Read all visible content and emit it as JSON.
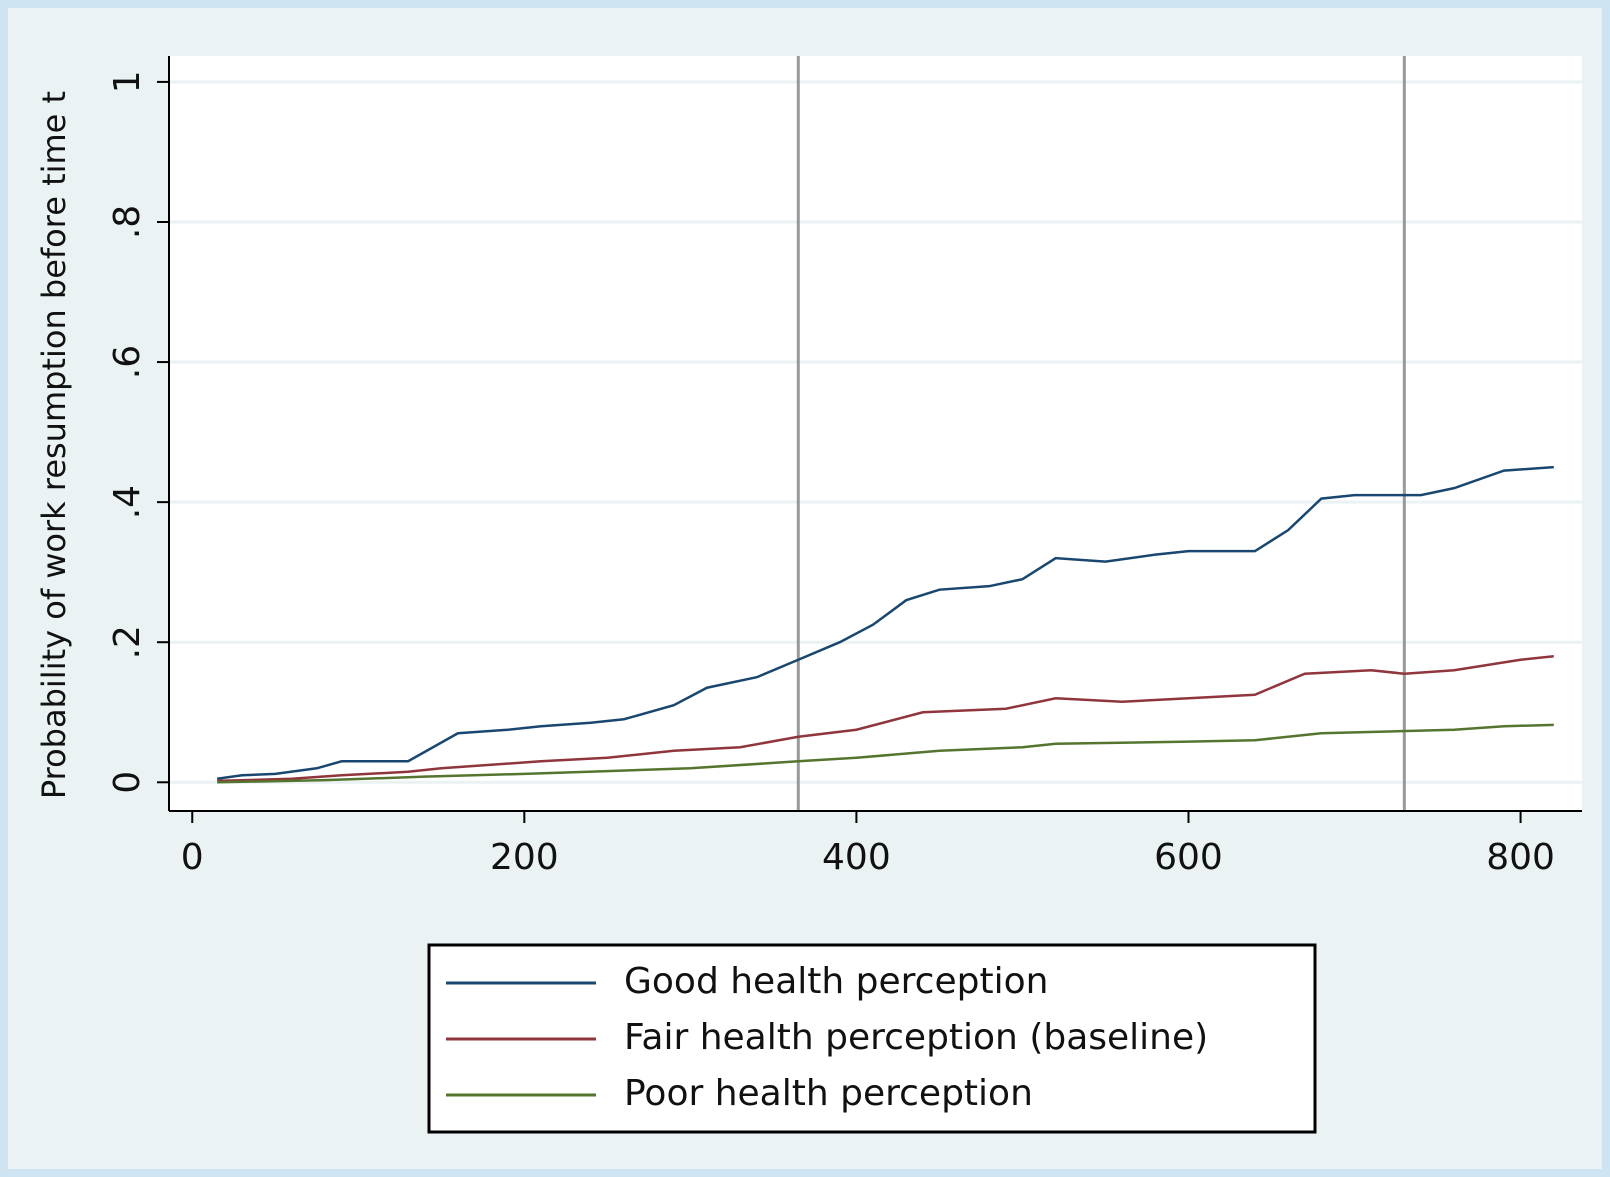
{
  "chart_data": {
    "type": "line",
    "y_label": "Probability of work resumption before time t",
    "xlim": [
      -14,
      837
    ],
    "ylim": [
      -0.041,
      1.037
    ],
    "xticks": [
      0,
      200,
      400,
      600,
      800
    ],
    "yticks": [
      0,
      {
        "value": 0.2,
        "label": ".2"
      },
      {
        "value": 0.4,
        "label": ".4"
      },
      {
        "value": 0.6,
        "label": ".6"
      },
      {
        "value": 0.8,
        "label": ".8"
      },
      1
    ],
    "grid": true,
    "xlines": [
      365,
      730
    ],
    "series": [
      {
        "name": "Good health perception",
        "color": "#1a476f",
        "x": [
          15,
          30,
          50,
          75,
          90,
          130,
          160,
          190,
          210,
          240,
          260,
          290,
          310,
          340,
          365,
          390,
          410,
          430,
          450,
          480,
          500,
          520,
          550,
          580,
          600,
          640,
          660,
          680,
          700,
          740,
          760,
          790,
          820
        ],
        "values": [
          0.005,
          0.01,
          0.012,
          0.02,
          0.03,
          0.03,
          0.07,
          0.075,
          0.08,
          0.085,
          0.09,
          0.11,
          0.135,
          0.15,
          0.175,
          0.2,
          0.225,
          0.26,
          0.275,
          0.28,
          0.29,
          0.32,
          0.315,
          0.325,
          0.33,
          0.33,
          0.36,
          0.405,
          0.41,
          0.41,
          0.42,
          0.445,
          0.45
        ]
      },
      {
        "name": "Fair health perception (baseline)",
        "color": "#90353b",
        "x": [
          15,
          60,
          90,
          130,
          150,
          180,
          210,
          250,
          290,
          330,
          365,
          400,
          440,
          490,
          520,
          560,
          600,
          640,
          670,
          710,
          730,
          760,
          800,
          820
        ],
        "values": [
          0.002,
          0.005,
          0.01,
          0.015,
          0.02,
          0.025,
          0.03,
          0.035,
          0.045,
          0.05,
          0.065,
          0.075,
          0.1,
          0.105,
          0.12,
          0.115,
          0.12,
          0.125,
          0.155,
          0.16,
          0.155,
          0.16,
          0.175,
          0.18
        ]
      },
      {
        "name": "Poor health perception",
        "color": "#55752f",
        "x": [
          15,
          80,
          140,
          200,
          250,
          300,
          365,
          400,
          450,
          500,
          520,
          600,
          640,
          680,
          760,
          790,
          820
        ],
        "values": [
          0,
          0.003,
          0.008,
          0.012,
          0.016,
          0.02,
          0.03,
          0.035,
          0.045,
          0.05,
          0.055,
          0.058,
          0.06,
          0.07,
          0.075,
          0.08,
          0.082
        ]
      }
    ]
  }
}
